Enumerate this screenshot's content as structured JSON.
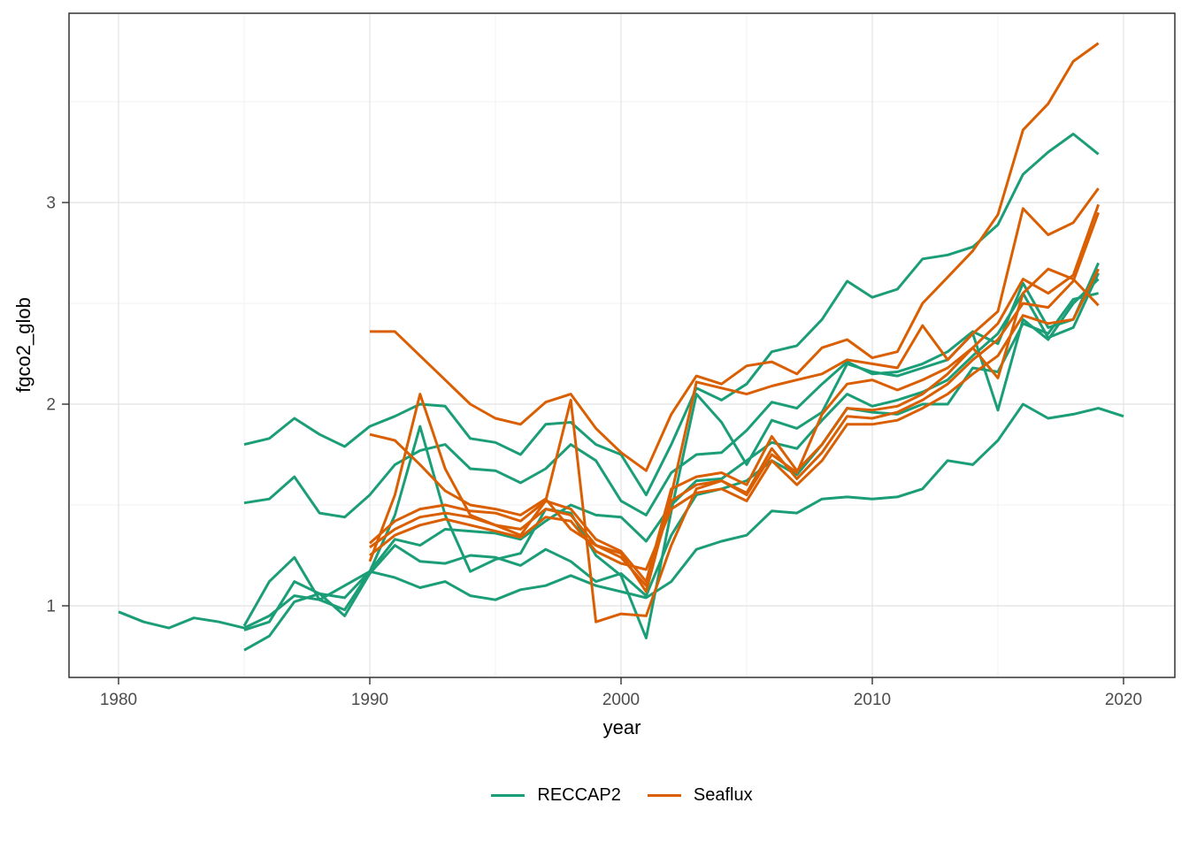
{
  "chart_data": {
    "type": "line",
    "title": "",
    "xlabel": "year",
    "ylabel": "fgco2_glob",
    "grid": "on",
    "legend_position": "bottom",
    "x_axis": {
      "major_ticks": [
        1980,
        1990,
        2000,
        2010,
        2020
      ],
      "minor_ticks": [
        1985,
        1995,
        2005,
        2015
      ],
      "range": [
        1978.0,
        2022.0
      ]
    },
    "y_axis": {
      "major_ticks": [
        1,
        2,
        3
      ],
      "minor_ticks": [
        1.5,
        2.5,
        3.5
      ],
      "range": [
        0.645,
        3.94
      ]
    },
    "groups": {
      "RECCAP2": "#1B9E77",
      "Seaflux": "#D95F02"
    },
    "series": [
      {
        "name": "reccap2-model-1",
        "group": "RECCAP2",
        "start_year": 1980,
        "values": [
          0.97,
          0.92,
          0.89,
          0.94,
          0.92,
          0.89,
          0.95,
          1.05,
          1.03,
          0.98,
          1.17,
          1.14,
          1.09,
          1.12,
          1.05,
          1.03,
          1.08,
          1.1,
          1.15,
          1.1,
          1.07,
          1.04,
          1.12,
          1.28,
          1.32,
          1.35,
          1.47,
          1.46,
          1.53,
          1.54,
          1.53,
          1.54,
          1.58,
          1.72,
          1.7,
          1.82,
          2.0,
          1.93,
          1.95,
          1.98,
          1.94
        ]
      },
      {
        "name": "reccap2-model-2",
        "group": "RECCAP2",
        "start_year": 1985,
        "values": [
          1.8,
          1.83,
          1.93,
          1.85,
          1.79,
          1.89,
          1.94,
          2.0,
          1.99,
          1.83,
          1.81,
          1.75,
          1.9,
          1.91,
          1.8,
          1.75,
          1.55,
          1.8,
          2.08,
          2.02,
          2.1,
          2.26,
          2.29,
          2.42,
          2.61,
          2.53,
          2.57,
          2.72,
          2.74,
          2.78,
          2.89,
          3.14,
          3.25,
          3.34,
          3.24
        ]
      },
      {
        "name": "reccap2-model-3",
        "group": "RECCAP2",
        "start_year": 1985,
        "values": [
          1.51,
          1.53,
          1.64,
          1.46,
          1.44,
          1.55,
          1.7,
          1.77,
          1.8,
          1.68,
          1.67,
          1.61,
          1.68,
          1.8,
          1.72,
          1.52,
          1.45,
          1.66,
          1.75,
          1.76,
          1.87,
          2.01,
          1.98,
          2.1,
          2.21,
          2.15,
          2.16,
          2.2,
          2.26,
          2.36,
          2.3,
          2.6,
          2.38,
          2.42,
          2.7
        ]
      },
      {
        "name": "reccap2-model-4",
        "group": "RECCAP2",
        "start_year": 1985,
        "values": [
          0.9,
          1.12,
          1.24,
          1.03,
          1.1,
          1.17,
          1.33,
          1.3,
          1.38,
          1.37,
          1.36,
          1.33,
          1.42,
          1.5,
          1.45,
          1.44,
          1.32,
          1.5,
          1.62,
          1.63,
          1.72,
          1.81,
          1.78,
          1.92,
          2.05,
          1.99,
          2.02,
          2.06,
          2.12,
          2.24,
          2.35,
          2.55,
          2.33,
          2.38,
          2.65
        ]
      },
      {
        "name": "reccap2-model-5",
        "group": "RECCAP2",
        "start_year": 1985,
        "values": [
          0.88,
          0.92,
          1.12,
          1.06,
          1.04,
          1.17,
          1.45,
          1.89,
          1.45,
          1.17,
          1.23,
          1.26,
          1.48,
          1.46,
          1.25,
          1.15,
          0.84,
          1.47,
          2.05,
          1.91,
          1.7,
          1.92,
          1.88,
          1.96,
          2.2,
          2.16,
          2.14,
          2.18,
          2.22,
          2.35,
          1.97,
          2.42,
          2.32,
          2.5,
          2.62
        ]
      },
      {
        "name": "reccap2-model-6",
        "group": "RECCAP2",
        "start_year": 1985,
        "values": [
          0.78,
          0.85,
          1.02,
          1.06,
          0.95,
          1.16,
          1.3,
          1.22,
          1.21,
          1.25,
          1.24,
          1.2,
          1.28,
          1.22,
          1.12,
          1.16,
          1.05,
          1.35,
          1.55,
          1.58,
          1.62,
          1.72,
          1.65,
          1.8,
          1.98,
          1.96,
          1.95,
          2.0,
          2.0,
          2.18,
          2.16,
          2.4,
          2.35,
          2.52,
          2.55
        ]
      },
      {
        "name": "seaflux-product-1",
        "group": "Seaflux",
        "start_year": 1990,
        "values": [
          2.36,
          2.36,
          2.24,
          2.12,
          2.0,
          1.93,
          1.9,
          2.01,
          2.05,
          1.88,
          1.76,
          1.67,
          1.95,
          2.14,
          2.1,
          2.19,
          2.21,
          2.15,
          2.28,
          2.32,
          2.23,
          2.26,
          2.5,
          2.63,
          2.76,
          2.94,
          3.36,
          3.49,
          3.7,
          3.79
        ]
      },
      {
        "name": "seaflux-product-2",
        "group": "Seaflux",
        "start_year": 1990,
        "values": [
          1.85,
          1.82,
          1.7,
          1.57,
          1.5,
          1.48,
          1.45,
          1.53,
          1.38,
          1.3,
          1.26,
          1.07,
          1.55,
          2.11,
          2.08,
          2.05,
          2.09,
          2.12,
          2.15,
          2.22,
          2.2,
          2.18,
          2.39,
          2.22,
          2.35,
          2.46,
          2.97,
          2.84,
          2.9,
          3.07
        ]
      },
      {
        "name": "seaflux-product-3",
        "group": "Seaflux",
        "start_year": 1990,
        "values": [
          1.31,
          1.42,
          1.48,
          1.5,
          1.47,
          1.46,
          1.42,
          1.52,
          1.48,
          1.33,
          1.27,
          1.12,
          1.58,
          1.64,
          1.66,
          1.6,
          1.84,
          1.67,
          1.8,
          1.98,
          1.97,
          1.99,
          2.05,
          2.15,
          2.28,
          2.4,
          2.62,
          2.55,
          2.64,
          2.99
        ]
      },
      {
        "name": "seaflux-product-4",
        "group": "Seaflux",
        "start_year": 1990,
        "values": [
          1.29,
          1.38,
          1.44,
          1.46,
          1.44,
          1.4,
          1.38,
          1.48,
          1.45,
          1.3,
          1.24,
          1.1,
          1.52,
          1.6,
          1.62,
          1.56,
          1.78,
          1.63,
          1.76,
          1.94,
          1.93,
          1.96,
          2.02,
          2.1,
          2.22,
          2.32,
          2.5,
          2.48,
          2.61,
          2.95
        ]
      },
      {
        "name": "seaflux-product-5",
        "group": "Seaflux",
        "start_year": 1990,
        "values": [
          1.25,
          1.35,
          1.4,
          1.43,
          1.4,
          1.37,
          1.34,
          1.44,
          1.42,
          1.27,
          1.21,
          1.18,
          1.48,
          1.56,
          1.58,
          1.52,
          1.72,
          1.6,
          1.72,
          1.9,
          1.9,
          1.92,
          1.98,
          2.05,
          2.15,
          2.24,
          2.44,
          2.4,
          2.42,
          2.67
        ]
      },
      {
        "name": "seaflux-product-6",
        "group": "Seaflux",
        "start_year": 1990,
        "values": [
          1.22,
          1.55,
          2.05,
          1.68,
          1.45,
          1.4,
          1.35,
          1.52,
          2.02,
          0.92,
          0.96,
          0.95,
          1.3,
          1.58,
          1.62,
          1.55,
          1.75,
          1.66,
          1.95,
          2.1,
          2.12,
          2.07,
          2.12,
          2.18,
          2.28,
          2.13,
          2.55,
          2.67,
          2.62,
          2.49
        ]
      }
    ]
  },
  "axes": {
    "y_title": "fgco2_glob",
    "x_title": "year",
    "y_tick_labels": [
      "1",
      "2",
      "3"
    ],
    "x_tick_labels": [
      "1980",
      "1990",
      "2000",
      "2010",
      "2020"
    ]
  },
  "legend": {
    "items": [
      {
        "label": "RECCAP2",
        "color": "#1B9E77"
      },
      {
        "label": "Seaflux",
        "color": "#D95F02"
      }
    ]
  },
  "style": {
    "panel_border_color": "#333333",
    "major_grid_color": "#e7e7e7",
    "minor_grid_color": "#f1f1f1",
    "tick_color": "#333333",
    "tick_label_color": "#4d4d4d",
    "background": "#ffffff"
  }
}
